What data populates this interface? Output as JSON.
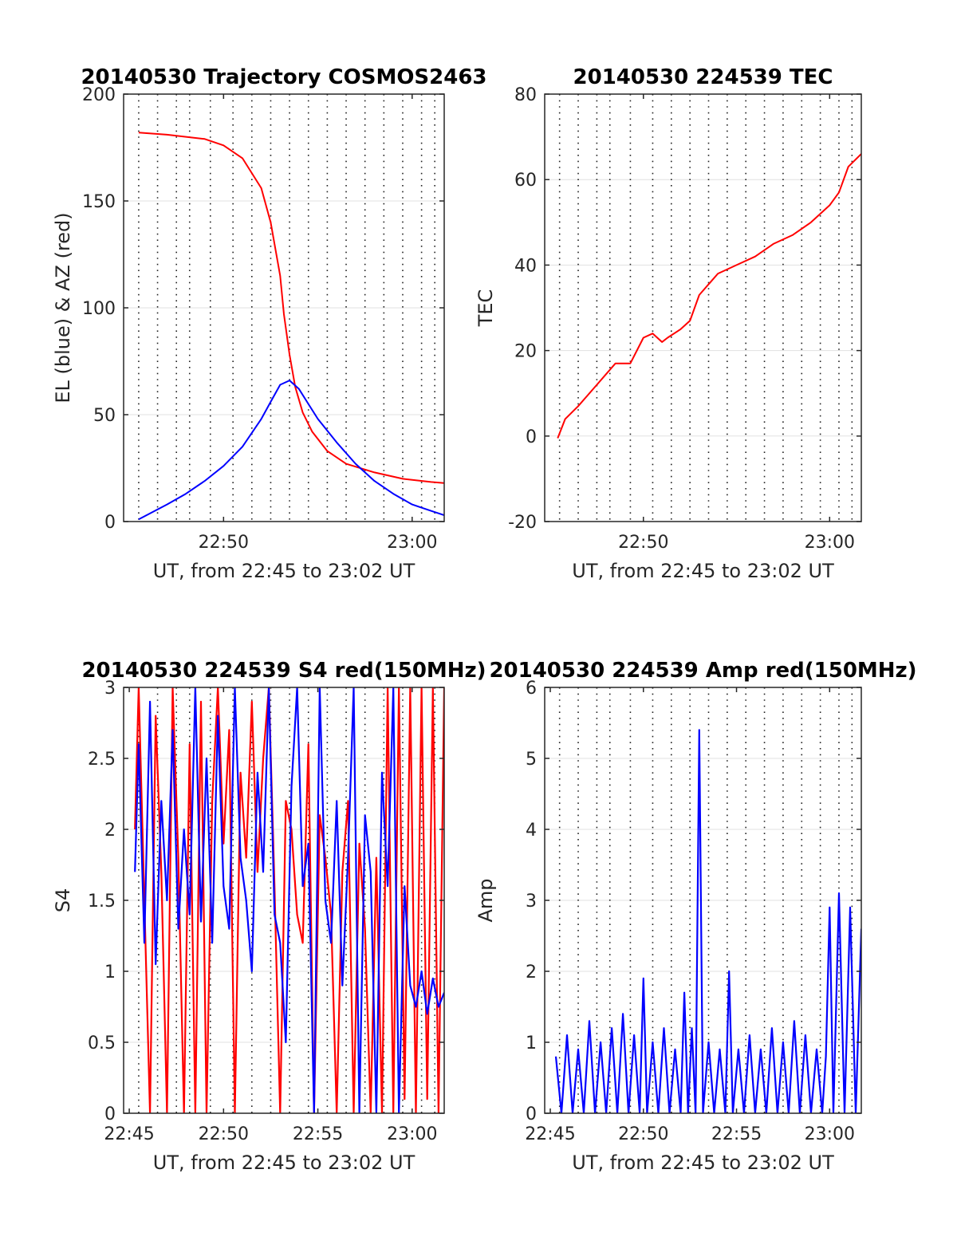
{
  "chart_data": [
    {
      "type": "line",
      "title": "20140530 Trajectory COSMOS2463",
      "xlabel": "UT, from 22:45 to 23:02 UT",
      "ylabel": "EL (blue) & AZ (red)",
      "xlim": [
        -0.3,
        16.7
      ],
      "ylim": [
        0,
        200
      ],
      "xticks": [
        {
          "value": 5,
          "label": "22:50"
        },
        {
          "value": 15,
          "label": "23:00"
        }
      ],
      "yticks": [
        0,
        50,
        100,
        150,
        200
      ],
      "series": [
        {
          "color": "#ff0000",
          "x": [
            0.5,
            2,
            4,
            5,
            6,
            7,
            7.5,
            8,
            8.2,
            8.5,
            8.8,
            9.2,
            9.7,
            10.5,
            11.5,
            13,
            14.5,
            16,
            16.7
          ],
          "y": [
            182,
            181,
            179,
            176,
            170,
            156,
            140,
            115,
            97,
            78,
            63,
            51,
            42,
            33,
            27,
            23,
            20,
            18.5,
            18
          ]
        },
        {
          "color": "#0000ff",
          "x": [
            0.5,
            2,
            3,
            4,
            5,
            6,
            7,
            7.5,
            8,
            8.5,
            9,
            9.5,
            10,
            11,
            12,
            13,
            14,
            15,
            16,
            16.7
          ],
          "y": [
            1,
            8,
            13,
            19,
            26,
            35,
            48,
            56,
            64,
            66,
            62,
            55,
            48,
            37,
            27,
            19,
            13,
            8,
            5,
            3
          ]
        }
      ]
    },
    {
      "type": "line",
      "title": "20140530 224539 TEC",
      "xlabel": "UT, from 22:45 to 23:02 UT",
      "ylabel": "TEC",
      "xlim": [
        -0.3,
        16.7
      ],
      "ylim": [
        -20,
        80
      ],
      "xticks": [
        {
          "value": 5,
          "label": "22:50"
        },
        {
          "value": 15,
          "label": "23:00"
        }
      ],
      "yticks": [
        -20,
        0,
        20,
        40,
        60,
        80
      ],
      "series": [
        {
          "color": "#ff0000",
          "x": [
            0.4,
            0.8,
            1.5,
            2.5,
            3.5,
            4.3,
            5,
            5.5,
            6,
            6.3,
            7,
            7.5,
            8,
            9,
            10,
            11,
            12,
            13,
            14,
            15,
            15.5,
            16,
            16.7
          ],
          "y": [
            -0.5,
            4,
            7,
            12,
            17,
            17,
            23,
            24,
            22,
            23,
            25,
            27,
            33,
            38,
            40,
            42,
            45,
            47,
            50,
            54,
            57,
            63,
            66
          ]
        }
      ]
    },
    {
      "type": "line",
      "title": "20140530 224539 S4 red(150MHz)",
      "xlabel": "UT, from 22:45 to 23:02 UT",
      "ylabel": "S4",
      "xlim": [
        -0.3,
        16.7
      ],
      "ylim": [
        0,
        3
      ],
      "xticks": [
        {
          "value": 0,
          "label": "22:45"
        },
        {
          "value": 5,
          "label": "22:50"
        },
        {
          "value": 10,
          "label": "22:55"
        },
        {
          "value": 15,
          "label": "23:00"
        }
      ],
      "yticks": [
        0,
        0.5,
        1,
        1.5,
        2,
        2.5,
        3
      ],
      "series": [
        {
          "color": "#ff0000",
          "x": [
            0.3,
            0.5,
            0.8,
            1.1,
            1.4,
            1.7,
            2.0,
            2.3,
            2.6,
            2.9,
            3.2,
            3.5,
            3.8,
            4.1,
            4.4,
            4.7,
            5.0,
            5.3,
            5.6,
            5.9,
            6.2,
            6.5,
            6.8,
            7.1,
            7.4,
            7.7,
            8.0,
            8.3,
            8.6,
            8.9,
            9.2,
            9.5,
            9.8,
            10.1,
            10.4,
            10.7,
            11.0,
            11.3,
            11.6,
            11.9,
            12.2,
            12.5,
            12.8,
            13.1,
            13.4,
            13.7,
            14.0,
            14.3,
            14.6,
            14.9,
            15.2,
            15.5,
            15.8,
            16.1,
            16.4,
            16.7
          ],
          "y": [
            2.0,
            3.0,
            1.5,
            0.0,
            2.8,
            1.7,
            0.0,
            3.0,
            1.8,
            0.0,
            2.6,
            0.0,
            2.9,
            0.0,
            2.2,
            3.0,
            1.9,
            2.7,
            0.0,
            2.4,
            1.8,
            2.9,
            1.7,
            2.5,
            3.0,
            1.6,
            0.0,
            2.2,
            2.0,
            1.4,
            1.2,
            2.6,
            0.0,
            2.1,
            1.8,
            1.4,
            0.0,
            1.7,
            2.2,
            0.0,
            1.9,
            1.3,
            0.0,
            1.8,
            0.0,
            3.0,
            0.0,
            3.0,
            0.1,
            3.0,
            0.0,
            3.0,
            0.1,
            3.0,
            0.0,
            3.0
          ]
        },
        {
          "color": "#0000ff",
          "x": [
            0.3,
            0.5,
            0.8,
            1.1,
            1.4,
            1.7,
            2.0,
            2.3,
            2.6,
            2.9,
            3.2,
            3.5,
            3.8,
            4.1,
            4.4,
            4.7,
            5.0,
            5.3,
            5.6,
            5.9,
            6.2,
            6.5,
            6.8,
            7.1,
            7.4,
            7.7,
            8.0,
            8.3,
            8.6,
            8.9,
            9.2,
            9.5,
            9.8,
            10.1,
            10.4,
            10.7,
            11.0,
            11.3,
            11.6,
            11.9,
            12.2,
            12.5,
            12.8,
            13.1,
            13.4,
            13.7,
            14.0,
            14.3,
            14.6,
            14.9,
            15.2,
            15.5,
            15.8,
            16.1,
            16.4,
            16.7
          ],
          "y": [
            1.7,
            2.6,
            1.2,
            2.9,
            1.05,
            2.2,
            1.5,
            2.7,
            1.3,
            2.0,
            1.4,
            3.0,
            1.35,
            2.5,
            1.2,
            2.8,
            1.6,
            1.3,
            3.0,
            1.8,
            1.5,
            1.0,
            2.4,
            1.7,
            3.0,
            1.4,
            1.2,
            0.5,
            2.3,
            3.0,
            1.6,
            1.9,
            0.0,
            3.0,
            1.5,
            1.2,
            2.2,
            0.9,
            1.8,
            3.0,
            0.0,
            2.1,
            1.7,
            0.0,
            2.4,
            1.6,
            3.0,
            0.0,
            1.6,
            0.9,
            0.75,
            1.0,
            0.7,
            0.95,
            0.75,
            0.85
          ]
        }
      ]
    },
    {
      "type": "line",
      "title": "20140530 224539 Amp red(150MHz)",
      "xlabel": "UT, from 22:45 to 23:02 UT",
      "ylabel": "Amp",
      "xlim": [
        -0.3,
        16.7
      ],
      "ylim": [
        0,
        6
      ],
      "xticks": [
        {
          "value": 0,
          "label": "22:45"
        },
        {
          "value": 5,
          "label": "22:50"
        },
        {
          "value": 10,
          "label": "22:55"
        },
        {
          "value": 15,
          "label": "23:00"
        }
      ],
      "yticks": [
        0,
        1,
        2,
        3,
        4,
        5,
        6
      ],
      "series": [
        {
          "color": "#0000ff",
          "x": [
            0.3,
            0.6,
            0.9,
            1.2,
            1.5,
            1.8,
            2.1,
            2.4,
            2.7,
            3.0,
            3.3,
            3.6,
            3.9,
            4.2,
            4.5,
            4.8,
            5.0,
            5.2,
            5.5,
            5.8,
            6.1,
            6.4,
            6.7,
            7.0,
            7.2,
            7.4,
            7.6,
            7.8,
            8.0,
            8.2,
            8.5,
            8.8,
            9.1,
            9.4,
            9.6,
            9.8,
            10.1,
            10.4,
            10.7,
            11.0,
            11.3,
            11.6,
            11.9,
            12.2,
            12.5,
            12.8,
            13.1,
            13.4,
            13.7,
            14.0,
            14.3,
            14.6,
            14.8,
            15.0,
            15.2,
            15.5,
            15.8,
            16.1,
            16.4,
            16.7
          ],
          "y": [
            0.8,
            0.0,
            1.1,
            0.0,
            0.9,
            0.0,
            1.3,
            0.0,
            1.0,
            0.0,
            1.2,
            0.0,
            1.4,
            0.0,
            1.1,
            0.0,
            1.9,
            0.0,
            1.0,
            0.0,
            1.2,
            0.0,
            0.9,
            0.0,
            1.7,
            0.0,
            1.2,
            0.0,
            5.4,
            0.0,
            1.0,
            0.0,
            0.9,
            0.0,
            2.0,
            0.0,
            0.9,
            0.0,
            1.1,
            0.0,
            0.9,
            0.0,
            1.2,
            0.0,
            1.0,
            0.0,
            1.3,
            0.0,
            1.1,
            0.0,
            0.9,
            0.0,
            0.8,
            2.9,
            0.0,
            3.1,
            0.0,
            2.9,
            0.0,
            2.6
          ]
        }
      ]
    }
  ]
}
